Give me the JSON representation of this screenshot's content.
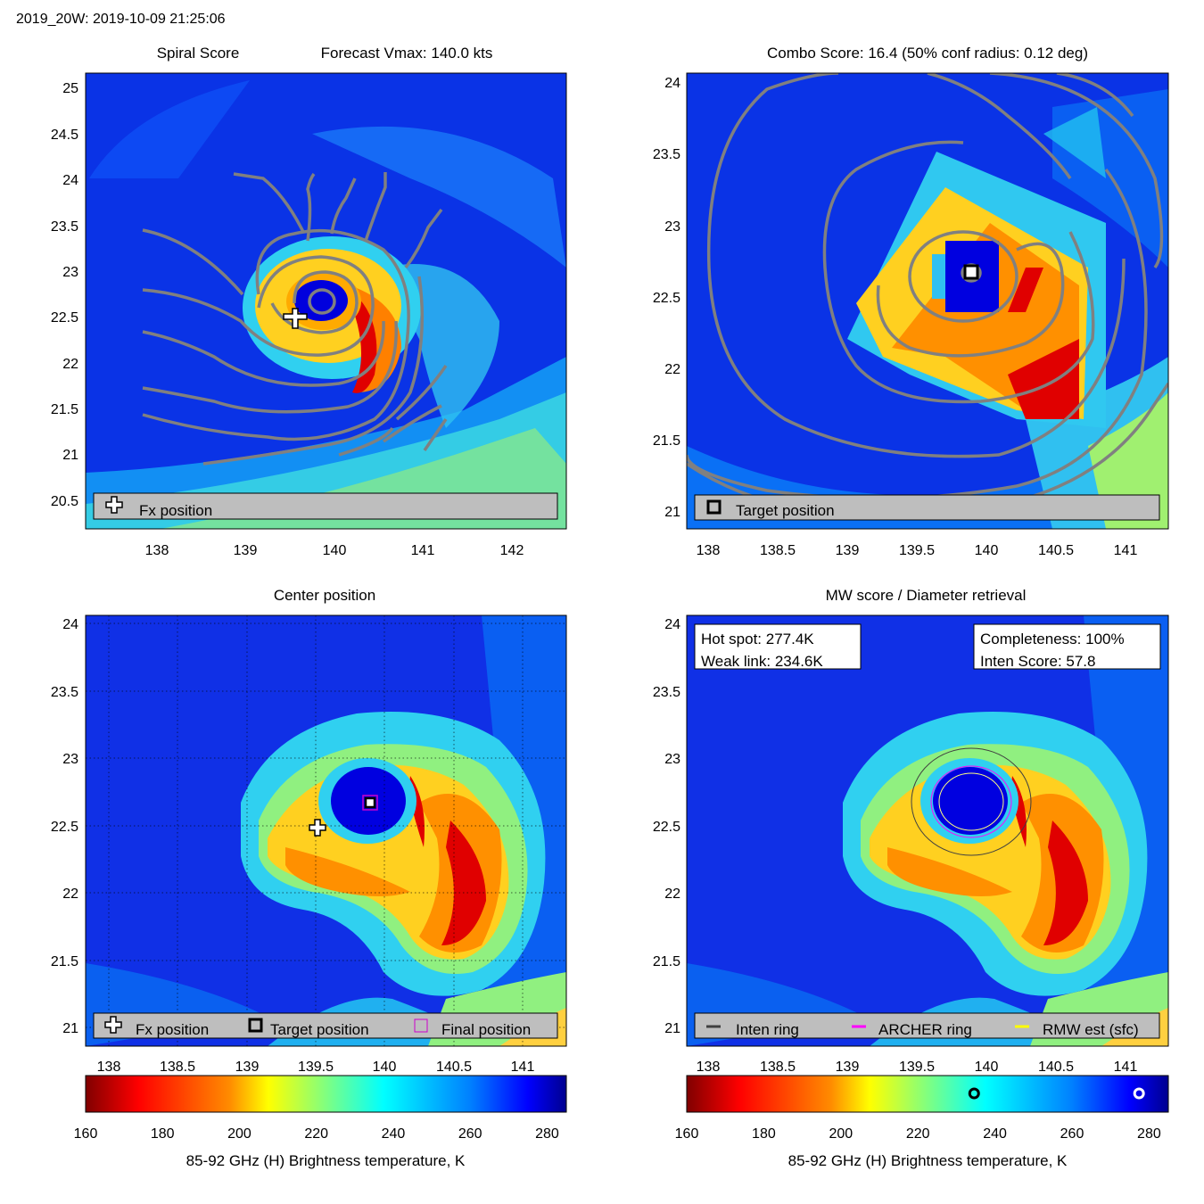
{
  "header": {
    "title": "2019_20W: 2019-10-09 21:25:06"
  },
  "panels": {
    "spiral": {
      "title": "Spiral Score",
      "subtitle": "Forecast Vmax: 140.0 kts",
      "legend": {
        "fx": "Fx position"
      }
    },
    "combo": {
      "title": "Combo Score: 16.4  (50% conf radius: 0.12 deg)",
      "legend": {
        "target": "Target position"
      }
    },
    "center": {
      "title": "Center position",
      "legend": {
        "fx": "Fx position",
        "target": "Target position",
        "final": "Final position"
      }
    },
    "mw": {
      "title": "MW score / Diameter retrieval",
      "info_left": {
        "hot": "Hot spot: 277.4K",
        "weak": "Weak link: 234.6K"
      },
      "info_right": {
        "comp": "Completeness: 100%",
        "inten": "Inten Score: 57.8"
      },
      "legend": {
        "inten": "Inten ring",
        "archer": "ARCHER ring",
        "rmw": "RMW est (sfc)"
      }
    }
  },
  "colorbars": {
    "label": "85-92 GHz (H) Brightness temperature, K",
    "ticks": [
      "160",
      "180",
      "200",
      "220",
      "240",
      "260",
      "280"
    ],
    "range": [
      160,
      285
    ],
    "markers": [
      234.6,
      277.4
    ]
  },
  "colors": {
    "contour": "#808080",
    "legend_bg": "#bebebe",
    "archer": "#ff00ff",
    "rmw": "#ffff00",
    "inten": "#404040",
    "final": "#cc00cc"
  },
  "chart_data": [
    {
      "type": "heatmap",
      "name": "spiral-score",
      "title": "Spiral Score",
      "subtitle": "Forecast Vmax: 140.0 kts",
      "xlim": [
        137.2,
        142.6
      ],
      "ylim": [
        20.15,
        25.2
      ],
      "xticks": [
        "138",
        "139",
        "140",
        "141",
        "142"
      ],
      "yticks": [
        "20.5",
        "21",
        "21.5",
        "22",
        "22.5",
        "23",
        "23.5",
        "24",
        "24.5",
        "25"
      ],
      "fx_position": [
        139.56,
        22.47
      ]
    },
    {
      "type": "heatmap",
      "name": "combo-score",
      "title": "Combo Score: 16.4  (50% conf radius: 0.12 deg)",
      "xlim": [
        137.75,
        141.3
      ],
      "ylim": [
        20.88,
        24.1
      ],
      "xticks": [
        "138",
        "138.5",
        "139",
        "139.5",
        "140",
        "140.5",
        "141"
      ],
      "yticks": [
        "21",
        "21.5",
        "22",
        "22.5",
        "23",
        "23.5",
        "24"
      ],
      "target_position": [
        139.9,
        22.68
      ]
    },
    {
      "type": "heatmap",
      "name": "center-position",
      "title": "Center position",
      "xlim": [
        137.75,
        141.3
      ],
      "ylim": [
        20.88,
        24.1
      ],
      "xticks": [
        "138",
        "138.5",
        "139",
        "139.5",
        "140",
        "140.5",
        "141"
      ],
      "yticks": [
        "21",
        "21.5",
        "22",
        "22.5",
        "23",
        "23.5",
        "24"
      ],
      "fx_position": [
        139.56,
        22.47
      ],
      "target_position": [
        139.9,
        22.68
      ],
      "final_position": [
        139.9,
        22.68
      ]
    },
    {
      "type": "heatmap",
      "name": "mw-score",
      "title": "MW score / Diameter retrieval",
      "xlim": [
        137.75,
        141.3
      ],
      "ylim": [
        20.88,
        24.1
      ],
      "xticks": [
        "138",
        "138.5",
        "139",
        "139.5",
        "140",
        "140.5",
        "141"
      ],
      "yticks": [
        "21",
        "21.5",
        "22",
        "22.5",
        "23",
        "23.5",
        "24"
      ],
      "hot_spot_K": 277.4,
      "weak_link_K": 234.6,
      "completeness_pct": 100,
      "inten_score": 57.8
    }
  ]
}
